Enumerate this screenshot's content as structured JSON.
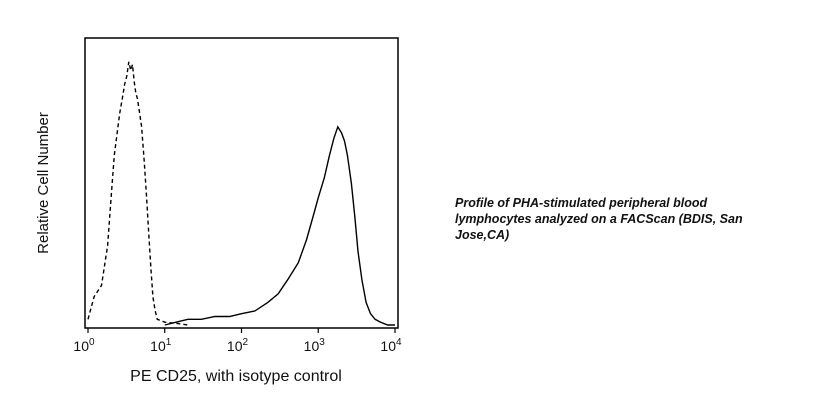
{
  "chart_data": {
    "type": "line",
    "title": "",
    "xlabel": "PE CD25, with isotype control",
    "ylabel": "Relative Cell Number",
    "x_scale": "log",
    "xlim": [
      1,
      10000
    ],
    "ylim": [
      0,
      1.0
    ],
    "x_ticks": [
      {
        "value": 1,
        "base": "10",
        "exp": "0"
      },
      {
        "value": 10,
        "base": "10",
        "exp": "1"
      },
      {
        "value": 100,
        "base": "10",
        "exp": "2"
      },
      {
        "value": 1000,
        "base": "10",
        "exp": "3"
      },
      {
        "value": 10000,
        "base": "10",
        "exp": "4"
      }
    ],
    "grid": false,
    "legend": "none",
    "series": [
      {
        "style": "dashed",
        "x": [
          1.0,
          1.2,
          1.5,
          1.8,
          2.0,
          2.2,
          2.4,
          2.6,
          2.8,
          3.0,
          3.2,
          3.4,
          3.6,
          3.8,
          4.0,
          4.2,
          4.4,
          4.7,
          5.0,
          5.4,
          5.8,
          6.2,
          6.6,
          7.0,
          7.5,
          8.0,
          10,
          15,
          20
        ],
        "y": [
          0.02,
          0.1,
          0.14,
          0.28,
          0.45,
          0.6,
          0.68,
          0.75,
          0.8,
          0.85,
          0.88,
          0.93,
          0.9,
          0.92,
          0.86,
          0.82,
          0.8,
          0.75,
          0.7,
          0.58,
          0.45,
          0.32,
          0.2,
          0.1,
          0.05,
          0.02,
          0.01,
          0.005,
          0.0
        ]
      },
      {
        "style": "solid",
        "x": [
          10,
          14,
          20,
          30,
          45,
          70,
          100,
          150,
          220,
          300,
          400,
          550,
          700,
          850,
          1000,
          1200,
          1400,
          1600,
          1800,
          2000,
          2200,
          2400,
          2700,
          3000,
          3300,
          3700,
          4200,
          4800,
          5500,
          6500,
          8000,
          10000
        ],
        "y": [
          0.0,
          0.01,
          0.02,
          0.02,
          0.03,
          0.03,
          0.04,
          0.05,
          0.08,
          0.11,
          0.16,
          0.22,
          0.3,
          0.38,
          0.45,
          0.52,
          0.6,
          0.66,
          0.7,
          0.68,
          0.65,
          0.6,
          0.5,
          0.38,
          0.26,
          0.16,
          0.08,
          0.04,
          0.02,
          0.01,
          0.0,
          0.0
        ]
      }
    ]
  },
  "caption": "Profile of PHA-stimulated peripheral blood lymphocytes analyzed on a FACScan (BDIS, San Jose,CA)"
}
